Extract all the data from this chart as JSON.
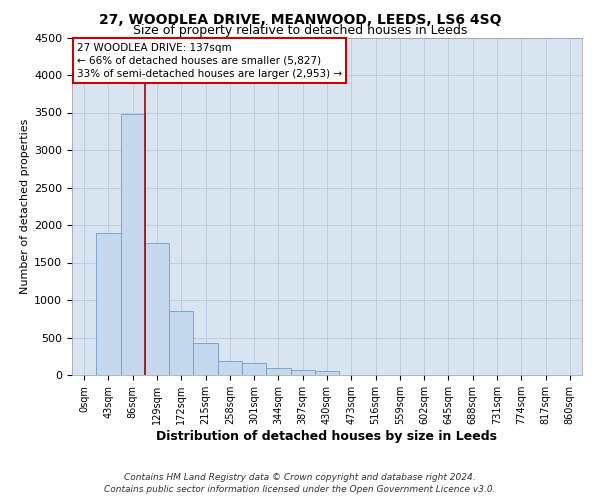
{
  "title": "27, WOODLEA DRIVE, MEANWOOD, LEEDS, LS6 4SQ",
  "subtitle": "Size of property relative to detached houses in Leeds",
  "xlabel": "Distribution of detached houses by size in Leeds",
  "ylabel": "Number of detached properties",
  "categories": [
    "0sqm",
    "43sqm",
    "86sqm",
    "129sqm",
    "172sqm",
    "215sqm",
    "258sqm",
    "301sqm",
    "344sqm",
    "387sqm",
    "430sqm",
    "473sqm",
    "516sqm",
    "559sqm",
    "602sqm",
    "645sqm",
    "688sqm",
    "731sqm",
    "774sqm",
    "817sqm",
    "860sqm"
  ],
  "values": [
    0,
    1900,
    3480,
    1760,
    860,
    430,
    190,
    155,
    100,
    70,
    50,
    0,
    0,
    0,
    0,
    0,
    0,
    0,
    0,
    0,
    0
  ],
  "bar_color": "#c5d8ed",
  "bar_edge_color": "#6b9ec8",
  "vline_color": "#aa0000",
  "vline_x": 2.5,
  "annotation_text_line1": "27 WOODLEA DRIVE: 137sqm",
  "annotation_text_line2": "← 66% of detached houses are smaller (5,827)",
  "annotation_text_line3": "33% of semi-detached houses are larger (2,953) →",
  "annotation_box_facecolor": "#ffffff",
  "annotation_box_edgecolor": "#cc0000",
  "ylim_max": 4500,
  "yticks": [
    0,
    500,
    1000,
    1500,
    2000,
    2500,
    3000,
    3500,
    4000,
    4500
  ],
  "grid_color": "#b8c8dc",
  "bg_color": "#d8e4f0",
  "footer_line1": "Contains HM Land Registry data © Crown copyright and database right 2024.",
  "footer_line2": "Contains public sector information licensed under the Open Government Licence v3.0.",
  "title_fontsize": 10,
  "subtitle_fontsize": 9,
  "xlabel_fontsize": 9,
  "ylabel_fontsize": 8,
  "tick_fontsize": 7,
  "ytick_fontsize": 8,
  "annotation_fontsize": 7.5,
  "footer_fontsize": 6.5
}
